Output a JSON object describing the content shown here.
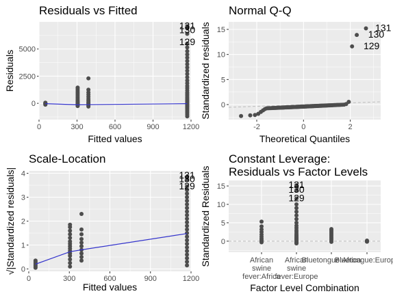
{
  "chart_data": [
    {
      "type": "scatter",
      "title": "Residuals vs Fitted",
      "xlabel": "Fitted values",
      "ylabel": "Residuals",
      "xlim": [
        0,
        1200
      ],
      "ylim": [
        -1500,
        7500
      ],
      "xticks": [
        0,
        300,
        600,
        900,
        1200
      ],
      "yticks": [
        0,
        2500,
        5000
      ],
      "colors": {
        "points": "#4d4d4d",
        "smooth": "#3232cc",
        "panel": "#ebebeb",
        "grid": "#ffffff"
      },
      "point_groups": [
        {
          "x": 50,
          "y": [
            -120,
            -60,
            -20,
            0,
            30,
            60
          ]
        },
        {
          "x": 305,
          "y": [
            -250,
            -180,
            -120,
            -60,
            0,
            50,
            120,
            200,
            300,
            420,
            560,
            700,
            850,
            1000,
            1150,
            1300,
            1450
          ]
        },
        {
          "x": 390,
          "y": [
            -300,
            -200,
            -100,
            0,
            100,
            250,
            400,
            600,
            800,
            1000,
            1250,
            2300
          ]
        },
        {
          "x": 1170,
          "y": [
            -1200,
            -1050,
            -900,
            -780,
            -650,
            -520,
            -400,
            -300,
            -200,
            -100,
            0,
            100,
            200,
            300,
            420,
            550,
            700,
            850,
            1000,
            1200,
            1400,
            1600,
            1850,
            2100,
            2400,
            2700,
            3000,
            3300,
            3600,
            3900,
            4200,
            4500,
            4800,
            5150,
            5500,
            6400,
            6900,
            7100
          ]
        }
      ],
      "smooth": {
        "x": [
          50,
          305,
          390,
          1170
        ],
        "y": [
          -30,
          -130,
          -120,
          -30
        ]
      },
      "labels": [
        {
          "text": "131",
          "x": 1170,
          "y": 7100
        },
        {
          "text": "130",
          "x": 1170,
          "y": 6700
        },
        {
          "text": "129",
          "x": 1170,
          "y": 5600
        }
      ]
    },
    {
      "type": "scatter",
      "title": "Normal Q-Q",
      "xlabel": "Theoretical Quantiles",
      "ylabel": "Standardized residuals",
      "xlim": [
        -3.2,
        3.3
      ],
      "ylim": [
        -3,
        16.5
      ],
      "xticks": [
        -2,
        0,
        2
      ],
      "yticks": [
        0,
        5,
        10,
        15
      ],
      "qq_points": {
        "n": 132
      },
      "reference_line": {
        "x": [
          -3.2,
          3.3
        ],
        "y": [
          -0.55,
          0.55
        ]
      },
      "labels": [
        {
          "text": "131",
          "x": 2.95,
          "y": 15.2
        },
        {
          "text": "130",
          "x": 2.65,
          "y": 13.9
        },
        {
          "text": "129",
          "x": 2.45,
          "y": 11.6
        }
      ]
    },
    {
      "type": "scatter",
      "title": "Scale-Location",
      "xlabel": "Fitted values",
      "ylabel": "√|Standardized residuals|",
      "xlim": [
        0,
        1200
      ],
      "ylim": [
        -0.1,
        4.1
      ],
      "xticks": [
        0,
        300,
        600,
        900,
        1200
      ],
      "yticks": [
        0,
        1,
        2,
        3,
        4
      ],
      "point_groups": [
        {
          "x": 50,
          "y": [
            0.05,
            0.1,
            0.15,
            0.2,
            0.25,
            0.3,
            0.35
          ]
        },
        {
          "x": 305,
          "y": [
            0.1,
            0.25,
            0.4,
            0.55,
            0.65,
            0.75,
            0.85,
            0.95,
            1.05,
            1.15,
            1.3,
            1.45,
            1.6,
            1.75,
            1.85
          ]
        },
        {
          "x": 390,
          "y": [
            0.35,
            0.5,
            0.65,
            0.8,
            0.95,
            1.1,
            1.25,
            1.45,
            1.65,
            2.3
          ]
        },
        {
          "x": 1170,
          "y": [
            0.15,
            0.3,
            0.45,
            0.6,
            0.75,
            0.9,
            1.05,
            1.2,
            1.35,
            1.5,
            1.65,
            1.8,
            1.95,
            2.1,
            2.25,
            2.4,
            2.55,
            2.7,
            2.85,
            3.0,
            3.15,
            3.3,
            3.45,
            3.75,
            3.85
          ]
        }
      ],
      "smooth": {
        "x": [
          50,
          305,
          390,
          1170
        ],
        "y": [
          0.2,
          0.72,
          0.8,
          1.48
        ]
      },
      "labels": [
        {
          "text": "131",
          "x": 1170,
          "y": 3.9
        },
        {
          "text": "130",
          "x": 1170,
          "y": 3.75
        },
        {
          "text": "129",
          "x": 1170,
          "y": 3.45
        }
      ]
    },
    {
      "type": "scatter",
      "title": "Constant Leverage:",
      "subtitle": "Residuals vs Factor Levels",
      "xlabel": "Factor Level Combination",
      "ylabel": "Standardized Residuals",
      "ylim": [
        -3,
        16.5
      ],
      "yticks": [
        0,
        5,
        10,
        15
      ],
      "categories": [
        "African swine fever:Africa",
        "African swine fever:Europe",
        "Bluetongue:Africa",
        "Bluetongue:Europe"
      ],
      "category_tick_labels": [
        [
          "African",
          "swine",
          "fever:Africa"
        ],
        [
          "African",
          "swine",
          "fever:Europe"
        ],
        [
          "Bluetongue:Africa"
        ],
        [
          "Bluetongue:Europe"
        ]
      ],
      "point_groups": [
        {
          "category": 0,
          "y": [
            -0.3,
            0,
            0.3,
            0.7,
            1.2,
            1.8,
            2.5,
            3.2,
            4.0,
            5.3
          ]
        },
        {
          "category": 1,
          "y": [
            -0.6,
            -0.4,
            -0.2,
            0,
            0.2,
            0.4,
            0.6,
            0.8,
            1.0,
            1.3,
            1.6,
            2.0,
            2.5,
            3.0,
            3.6,
            4.2,
            5.0,
            6.0,
            7.0,
            8.0,
            9.0,
            10.0,
            11.6,
            13.9,
            15.2
          ]
        },
        {
          "category": 2,
          "y": [
            -0.2,
            0.2,
            0.6,
            1.0,
            1.4,
            1.8,
            2.2,
            2.6,
            3.0,
            3.3
          ]
        },
        {
          "category": 3,
          "y": [
            -0.15,
            -0.05,
            0,
            0.05,
            0.15
          ]
        }
      ],
      "reference_line": {
        "y": 0
      },
      "labels": [
        {
          "text": "131",
          "category": 1,
          "y": 15.2
        },
        {
          "text": "130",
          "category": 1,
          "y": 13.9
        },
        {
          "text": "129",
          "category": 1,
          "y": 11.6
        }
      ]
    }
  ]
}
